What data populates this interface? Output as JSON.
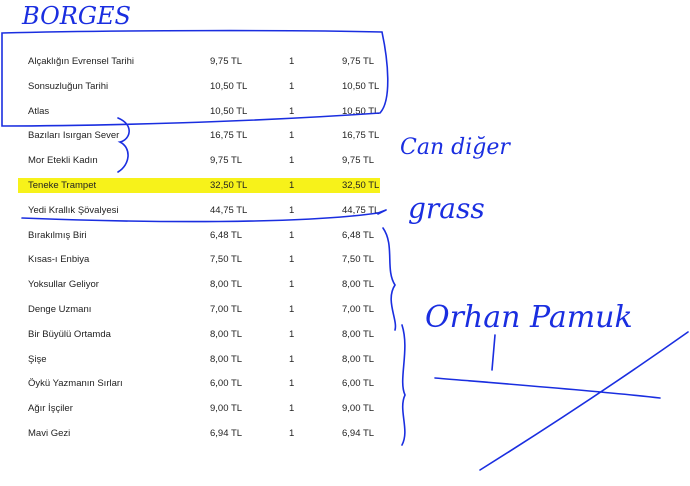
{
  "table": {
    "rows": [
      {
        "name": "Alçaklığın Evrensel Tarihi",
        "price": "9,75 TL",
        "qty": "1",
        "total": "9,75 TL"
      },
      {
        "name": "Sonsuzluğun Tarihi",
        "price": "10,50 TL",
        "qty": "1",
        "total": "10,50 TL"
      },
      {
        "name": "Atlas",
        "price": "10,50 TL",
        "qty": "1",
        "total": "10,50 TL"
      },
      {
        "name": "Bazıları Isırgan Sever",
        "price": "16,75 TL",
        "qty": "1",
        "total": "16,75 TL"
      },
      {
        "name": "Mor Etekli Kadın",
        "price": "9,75 TL",
        "qty": "1",
        "total": "9,75 TL"
      },
      {
        "name": "Teneke Trampet",
        "price": "32,50 TL",
        "qty": "1",
        "total": "32,50 TL"
      },
      {
        "name": "Yedi Krallık Şövalyesi",
        "price": "44,75 TL",
        "qty": "1",
        "total": "44,75 TL"
      },
      {
        "name": "Bırakılmış Biri",
        "price": "6,48 TL",
        "qty": "1",
        "total": "6,48 TL"
      },
      {
        "name": "Kısas-ı Enbiya",
        "price": "7,50 TL",
        "qty": "1",
        "total": "7,50 TL"
      },
      {
        "name": "Yoksullar Geliyor",
        "price": "8,00 TL",
        "qty": "1",
        "total": "8,00 TL"
      },
      {
        "name": "Denge Uzmanı",
        "price": "7,00 TL",
        "qty": "1",
        "total": "7,00 TL"
      },
      {
        "name": "Bir Büyülü Ortamda",
        "price": "8,00 TL",
        "qty": "1",
        "total": "8,00 TL"
      },
      {
        "name": "Şişe",
        "price": "8,00 TL",
        "qty": "1",
        "total": "8,00 TL"
      },
      {
        "name": "Öykü Yazmanın Sırları",
        "price": "6,00 TL",
        "qty": "1",
        "total": "6,00 TL"
      },
      {
        "name": "Ağır İşçiler",
        "price": "9,00 TL",
        "qty": "1",
        "total": "9,00 TL"
      },
      {
        "name": "Mavi Gezi",
        "price": "6,94 TL",
        "qty": "1",
        "total": "6,94 TL"
      }
    ],
    "highlighted_row": "Teneke Trampet",
    "highlight_color": "#f7f21a"
  },
  "annotations": {
    "ink_color": "#1a2ee0",
    "borges": "BORGES",
    "can_diger": "Can diğer",
    "grass": "grass",
    "orhan_pamuk": "Orhan Pamuk"
  }
}
